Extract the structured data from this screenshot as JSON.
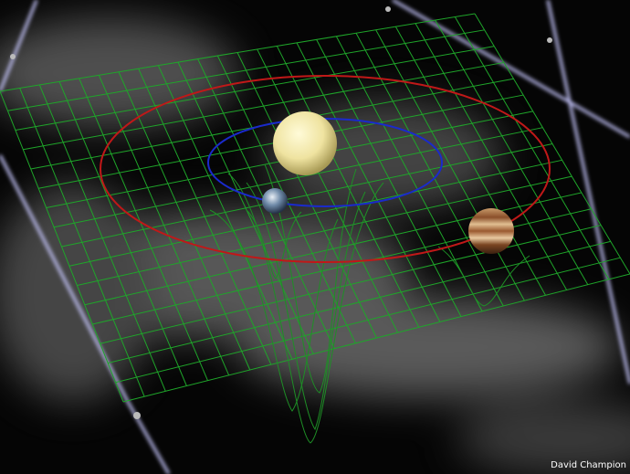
{
  "credit": "David Champion"
}
